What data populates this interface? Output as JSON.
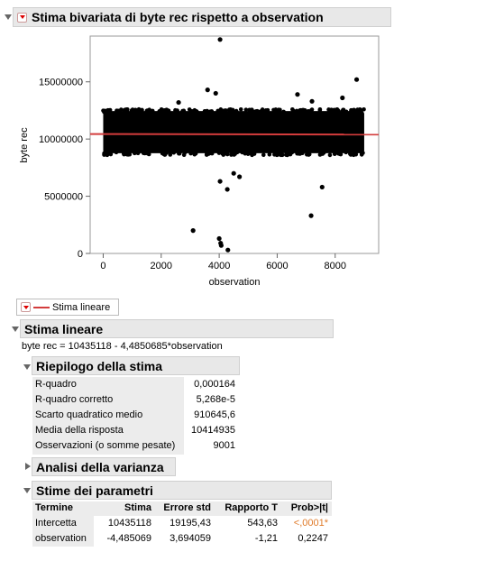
{
  "report": {
    "title": "Stima bivariata di byte rec rispetto a observation"
  },
  "chart_data": {
    "type": "scatter",
    "xlabel": "observation",
    "ylabel": "byte rec",
    "xlim": [
      -450,
      9500
    ],
    "ylim": [
      0,
      19000000
    ],
    "x_ticks": [
      "0",
      "2000",
      "4000",
      "6000",
      "8000"
    ],
    "y_ticks": [
      "0",
      "5000000",
      "10000000",
      "15000000"
    ],
    "dense_band": {
      "x": [
        0,
        9001
      ],
      "y_low": 8600000,
      "y_high": 12600000
    },
    "fit_line": {
      "intercept": 10435118,
      "slope": -4.4850685,
      "color": "#d33c3c"
    },
    "outliers": [
      {
        "x": 4030,
        "y": 18700000
      },
      {
        "x": 8740,
        "y": 15200000
      },
      {
        "x": 3600,
        "y": 14300000
      },
      {
        "x": 3880,
        "y": 14000000
      },
      {
        "x": 6700,
        "y": 13900000
      },
      {
        "x": 8250,
        "y": 13600000
      },
      {
        "x": 7200,
        "y": 13300000
      },
      {
        "x": 2600,
        "y": 13200000
      },
      {
        "x": 4500,
        "y": 7000000
      },
      {
        "x": 4700,
        "y": 6700000
      },
      {
        "x": 4030,
        "y": 6300000
      },
      {
        "x": 4280,
        "y": 5600000
      },
      {
        "x": 7550,
        "y": 5800000
      },
      {
        "x": 7170,
        "y": 3300000
      },
      {
        "x": 3100,
        "y": 2000000
      },
      {
        "x": 4000,
        "y": 1300000
      },
      {
        "x": 4050,
        "y": 900000
      },
      {
        "x": 4070,
        "y": 700000
      },
      {
        "x": 4300,
        "y": 300000
      }
    ]
  },
  "legend": {
    "label": "Stima lineare",
    "line_color": "#d33c3c"
  },
  "linear_fit": {
    "title": "Stima lineare",
    "equation": "byte rec = 10435118 - 4,4850685*observation"
  },
  "summary": {
    "title": "Riepilogo della stima",
    "rows": [
      {
        "label": "R-quadro",
        "value": "0,000164"
      },
      {
        "label": "R-quadro corretto",
        "value": "5,268e-5"
      },
      {
        "label": "Scarto quadratico medio",
        "value": "910645,6"
      },
      {
        "label": "Media della risposta",
        "value": "10414935"
      },
      {
        "label": "Osservazioni (o somme pesate)",
        "value": "9001"
      }
    ]
  },
  "anova": {
    "title": "Analisi della varianza"
  },
  "params": {
    "title": "Stime dei parametri",
    "headers": [
      "Termine",
      "Stima",
      "Errore std",
      "Rapporto T",
      "Prob>|t|"
    ],
    "rows": [
      {
        "term": "Intercetta",
        "estimate": "10435118",
        "std_error": "19195,43",
        "t_ratio": "543,63",
        "p": "<,0001*",
        "p_color": "#e07b2a"
      },
      {
        "term": "observation",
        "estimate": "-4,485069",
        "std_error": "3,694059",
        "t_ratio": "-1,21",
        "p": "0,2247",
        "p_color": "#000000"
      }
    ]
  }
}
